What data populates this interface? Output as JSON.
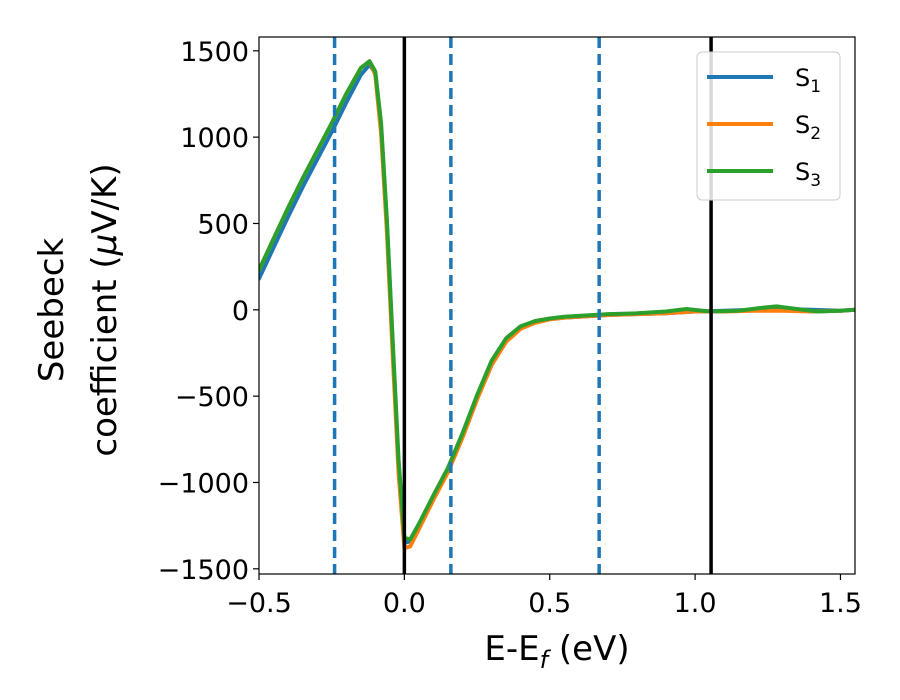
{
  "chart_data": {
    "type": "line",
    "xlabel": "E-E",
    "xlabel_sub": "f",
    "xlabel_unit": " (eV)",
    "ylabel_line1": "Seebeck",
    "ylabel_line2": "coefficient  (",
    "ylabel_mu": "μ",
    "ylabel_unit": "V/K)",
    "xlim": [
      -0.5,
      1.55
    ],
    "ylim": [
      -1530,
      1580
    ],
    "xticks": [
      -0.5,
      0.0,
      0.5,
      1.0,
      1.5
    ],
    "xtick_labels": [
      "−0.5",
      "0.0",
      "0.5",
      "1.0",
      "1.5"
    ],
    "yticks": [
      -1500,
      -1000,
      -500,
      0,
      500,
      1000,
      1500
    ],
    "ytick_labels": [
      "−1500",
      "−1000",
      "−500",
      "0",
      "500",
      "1000",
      "1500"
    ],
    "grid": false,
    "legend_position": "top-right",
    "vlines_solid": [
      0.0,
      1.055
    ],
    "vlines_dashed": [
      -0.24,
      0.16,
      0.67
    ],
    "solid_color": "#000000",
    "dashed_color": "#1f77b4",
    "series": [
      {
        "name": "S",
        "sub": "1",
        "color": "#1f77b4",
        "x": [
          -0.5,
          -0.45,
          -0.4,
          -0.35,
          -0.3,
          -0.25,
          -0.2,
          -0.15,
          -0.12,
          -0.1,
          -0.08,
          -0.06,
          -0.04,
          -0.02,
          0.0,
          0.02,
          0.05,
          0.1,
          0.15,
          0.2,
          0.25,
          0.3,
          0.35,
          0.4,
          0.45,
          0.5,
          0.55,
          0.6,
          0.7,
          0.8,
          0.9,
          1.0,
          1.1,
          1.2,
          1.3,
          1.4,
          1.5,
          1.55
        ],
        "y": [
          180,
          360,
          540,
          710,
          870,
          1030,
          1200,
          1360,
          1420,
          1370,
          1050,
          500,
          -200,
          -900,
          -1350,
          -1340,
          -1250,
          -1080,
          -920,
          -720,
          -500,
          -300,
          -170,
          -100,
          -70,
          -55,
          -45,
          -40,
          -30,
          -25,
          -20,
          -10,
          -5,
          0,
          5,
          0,
          -5,
          0
        ]
      },
      {
        "name": "S",
        "sub": "2",
        "color": "#ff7f0e",
        "x": [
          -0.5,
          -0.45,
          -0.4,
          -0.35,
          -0.3,
          -0.25,
          -0.2,
          -0.15,
          -0.12,
          -0.1,
          -0.08,
          -0.06,
          -0.04,
          -0.02,
          0.0,
          0.02,
          0.05,
          0.1,
          0.15,
          0.2,
          0.25,
          0.3,
          0.35,
          0.4,
          0.45,
          0.5,
          0.55,
          0.6,
          0.7,
          0.8,
          0.9,
          1.0,
          1.1,
          1.2,
          1.3,
          1.4,
          1.5,
          1.55
        ],
        "y": [
          230,
          410,
          590,
          760,
          920,
          1080,
          1250,
          1400,
          1440,
          1360,
          1020,
          450,
          -260,
          -950,
          -1380,
          -1370,
          -1270,
          -1100,
          -940,
          -740,
          -520,
          -320,
          -185,
          -110,
          -75,
          -55,
          -45,
          -40,
          -30,
          -25,
          -20,
          -10,
          -10,
          -5,
          -5,
          -10,
          -5,
          0
        ]
      },
      {
        "name": "S",
        "sub": "3",
        "color": "#2ca02c",
        "x": [
          -0.5,
          -0.45,
          -0.4,
          -0.35,
          -0.3,
          -0.25,
          -0.2,
          -0.15,
          -0.12,
          -0.1,
          -0.08,
          -0.06,
          -0.04,
          -0.02,
          0.0,
          0.02,
          0.05,
          0.1,
          0.15,
          0.2,
          0.25,
          0.3,
          0.35,
          0.4,
          0.45,
          0.5,
          0.55,
          0.6,
          0.7,
          0.8,
          0.9,
          0.97,
          1.05,
          1.15,
          1.22,
          1.28,
          1.35,
          1.42,
          1.5,
          1.55
        ],
        "y": [
          230,
          410,
          590,
          760,
          920,
          1080,
          1250,
          1400,
          1440,
          1380,
          1080,
          520,
          -180,
          -870,
          -1320,
          -1330,
          -1240,
          -1075,
          -915,
          -715,
          -495,
          -295,
          -165,
          -95,
          -65,
          -50,
          -40,
          -35,
          -25,
          -20,
          -10,
          5,
          -10,
          -5,
          10,
          20,
          5,
          -10,
          -5,
          0
        ]
      }
    ]
  }
}
